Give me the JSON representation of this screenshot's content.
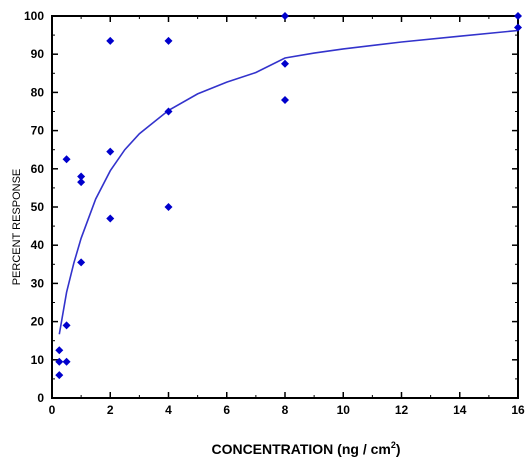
{
  "chart_data": {
    "type": "scatter",
    "title": "",
    "xlabel": "CONCENTRATION (ng / cm",
    "xlabel_superscript": "2",
    "xlabel_suffix": ")",
    "ylabel": "PERCENT RESPONSE",
    "xlim": [
      0,
      16
    ],
    "ylim": [
      0,
      100
    ],
    "x_ticks": [
      "0",
      "2",
      "4",
      "6",
      "8",
      "10",
      "12",
      "14",
      "16"
    ],
    "x_tick_values": [
      0,
      2,
      4,
      6,
      8,
      10,
      12,
      14,
      16
    ],
    "y_ticks": [
      "0",
      "10",
      "20",
      "30",
      "40",
      "50",
      "60",
      "70",
      "80",
      "90",
      "100"
    ],
    "y_tick_values": [
      0,
      10,
      20,
      30,
      40,
      50,
      60,
      70,
      80,
      90,
      100
    ],
    "grid": false,
    "legend": "none",
    "marker_color": "#0000cc",
    "line_color": "#3333cc",
    "series": [
      {
        "points": [
          {
            "x": 0.25,
            "y": 6
          },
          {
            "x": 0.25,
            "y": 9.5
          },
          {
            "x": 0.25,
            "y": 12.5
          },
          {
            "x": 0.5,
            "y": 9.5
          },
          {
            "x": 0.5,
            "y": 19
          },
          {
            "x": 0.5,
            "y": 62.5
          },
          {
            "x": 1,
            "y": 35.5
          },
          {
            "x": 1,
            "y": 56.5
          },
          {
            "x": 1,
            "y": 58
          },
          {
            "x": 2,
            "y": 47
          },
          {
            "x": 2,
            "y": 64.5
          },
          {
            "x": 2,
            "y": 93.5
          },
          {
            "x": 4,
            "y": 50
          },
          {
            "x": 4,
            "y": 75
          },
          {
            "x": 4,
            "y": 93.5
          },
          {
            "x": 8,
            "y": 78
          },
          {
            "x": 8,
            "y": 87.5
          },
          {
            "x": 8,
            "y": 100
          },
          {
            "x": 16,
            "y": 97
          },
          {
            "x": 16,
            "y": 100
          }
        ]
      }
    ],
    "fit_curve": {
      "type": "line",
      "points": [
        {
          "x": 0.25,
          "y": 16.7
        },
        {
          "x": 0.5,
          "y": 27.7
        },
        {
          "x": 0.75,
          "y": 35.3
        },
        {
          "x": 1,
          "y": 41.8
        },
        {
          "x": 1.5,
          "y": 52.1
        },
        {
          "x": 2,
          "y": 59.5
        },
        {
          "x": 2.5,
          "y": 65.0
        },
        {
          "x": 3,
          "y": 69.2
        },
        {
          "x": 4,
          "y": 75.3
        },
        {
          "x": 5,
          "y": 79.6
        },
        {
          "x": 6,
          "y": 82.7
        },
        {
          "x": 7,
          "y": 85.2
        },
        {
          "x": 8,
          "y": 89.0
        },
        {
          "x": 9,
          "y": 90.3
        },
        {
          "x": 10,
          "y": 91.4
        },
        {
          "x": 12,
          "y": 93.2
        },
        {
          "x": 14,
          "y": 94.7
        },
        {
          "x": 16,
          "y": 96.2
        }
      ]
    }
  }
}
